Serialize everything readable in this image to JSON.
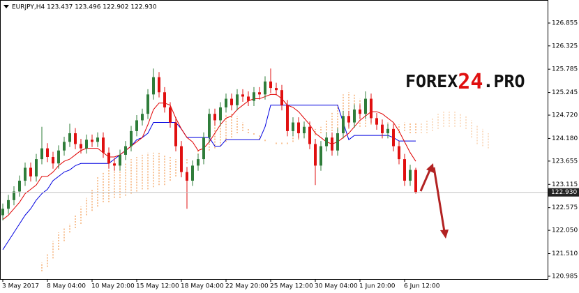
{
  "header": "EURJPY,H4  123.437 123.496 122.902 122.930",
  "logo": {
    "part1": "FOREX",
    "part2": "24",
    "part3": ".PRO"
  },
  "chart_data": {
    "type": "candlestick",
    "categories": [
      "3 May 2017",
      null,
      null,
      null,
      null,
      null,
      null,
      null,
      "8 May 04:00",
      null,
      null,
      null,
      null,
      null,
      null,
      null,
      "10 May 20:00",
      null,
      null,
      null,
      null,
      null,
      null,
      null,
      "15 May 12:00",
      null,
      null,
      null,
      null,
      null,
      null,
      null,
      "18 May 04:00",
      null,
      null,
      null,
      null,
      null,
      null,
      null,
      "22 May 20:00",
      null,
      null,
      null,
      null,
      null,
      null,
      null,
      "25 May 12:00",
      null,
      null,
      null,
      null,
      null,
      null,
      null,
      "30 May 04:00",
      null,
      null,
      null,
      null,
      null,
      null,
      null,
      "1 Jun 20:00",
      null,
      null,
      null,
      null,
      null,
      null,
      null,
      "6 Jun 12:00",
      null,
      null,
      null,
      null,
      null,
      null,
      null,
      null,
      null,
      null,
      null,
      null,
      null,
      null,
      null
    ],
    "open": [
      122.4,
      122.55,
      122.75,
      122.95,
      123.2,
      123.5,
      123.3,
      123.7,
      123.95,
      123.75,
      123.6,
      123.9,
      124.1,
      124.3,
      124.05,
      123.95,
      124.15,
      124.1,
      124.2,
      123.85,
      123.6,
      123.55,
      123.8,
      124.0,
      124.35,
      124.6,
      124.75,
      125.2,
      125.6,
      125.25,
      124.9,
      124.55,
      124.0,
      123.4,
      123.2,
      123.55,
      123.7,
      124.2,
      124.75,
      124.6,
      124.9,
      125.1,
      124.95,
      125.2,
      125.15,
      125.05,
      125.25,
      125.2,
      125.5,
      125.35,
      125.3,
      124.95,
      124.35,
      124.55,
      124.3,
      124.45,
      124.05,
      123.55,
      124.0,
      124.2,
      123.9,
      124.3,
      124.7,
      124.55,
      124.85,
      124.75,
      125.1,
      124.65,
      124.5,
      124.3,
      124.4,
      124.0,
      123.7,
      123.2,
      123.45,
      null,
      null,
      null,
      null,
      null,
      null,
      null,
      null,
      null,
      null,
      null,
      null,
      null
    ],
    "high": [
      122.67,
      122.87,
      123.07,
      123.32,
      123.62,
      123.62,
      123.82,
      124.45,
      124.07,
      123.87,
      124.02,
      124.22,
      124.52,
      124.42,
      124.17,
      124.27,
      124.27,
      124.32,
      124.32,
      123.97,
      123.72,
      123.92,
      124.12,
      124.47,
      124.72,
      124.87,
      125.32,
      125.8,
      125.72,
      125.37,
      125.02,
      124.67,
      124.12,
      123.52,
      123.67,
      123.82,
      124.32,
      124.87,
      124.87,
      125.02,
      125.22,
      125.22,
      125.32,
      125.32,
      125.27,
      125.37,
      125.37,
      125.62,
      125.8,
      125.47,
      125.42,
      125.07,
      124.67,
      124.67,
      124.57,
      124.57,
      124.17,
      124.12,
      124.32,
      124.32,
      124.42,
      124.82,
      124.82,
      124.97,
      124.97,
      125.27,
      125.22,
      124.77,
      124.62,
      124.52,
      124.52,
      124.12,
      123.82,
      123.57,
      123.5,
      null,
      null,
      null,
      null,
      null,
      null,
      null,
      null,
      null,
      null,
      null,
      null,
      null
    ],
    "low": [
      122.28,
      122.43,
      122.63,
      122.83,
      123.08,
      123.18,
      123.18,
      123.58,
      123.63,
      123.48,
      123.48,
      123.78,
      123.98,
      123.93,
      123.83,
      123.83,
      123.98,
      123.98,
      123.73,
      123.48,
      123.43,
      123.43,
      123.68,
      123.88,
      124.23,
      124.48,
      124.63,
      125.08,
      125.13,
      124.78,
      124.43,
      123.88,
      123.28,
      122.55,
      123.08,
      123.43,
      123.58,
      124.08,
      124.48,
      124.48,
      124.78,
      124.83,
      124.83,
      125.03,
      124.93,
      124.93,
      125.08,
      125.08,
      125.23,
      125.18,
      124.83,
      124.23,
      124.23,
      124.18,
      124.18,
      123.93,
      123.1,
      123.43,
      123.88,
      123.78,
      123.78,
      124.18,
      124.43,
      124.43,
      124.63,
      124.63,
      124.53,
      124.38,
      124.18,
      124.18,
      123.88,
      123.58,
      123.08,
      123.08,
      122.9,
      null,
      null,
      null,
      null,
      null,
      null,
      null,
      null,
      null,
      null,
      null,
      null,
      null
    ],
    "close": [
      122.55,
      122.75,
      122.95,
      123.2,
      123.5,
      123.3,
      123.7,
      123.95,
      123.75,
      123.6,
      123.9,
      124.1,
      124.3,
      124.05,
      123.95,
      124.15,
      124.1,
      124.2,
      123.85,
      123.6,
      123.55,
      123.8,
      124.0,
      124.35,
      124.6,
      124.75,
      125.2,
      125.6,
      125.25,
      124.9,
      124.55,
      124.0,
      123.4,
      123.2,
      123.55,
      123.7,
      124.2,
      124.75,
      124.6,
      124.9,
      125.1,
      124.95,
      125.2,
      125.15,
      125.05,
      125.25,
      125.2,
      125.5,
      125.35,
      125.3,
      124.95,
      124.35,
      124.55,
      124.3,
      124.45,
      124.05,
      123.55,
      124.0,
      124.2,
      123.9,
      124.3,
      124.7,
      124.55,
      124.85,
      124.75,
      125.1,
      124.65,
      124.5,
      124.3,
      124.4,
      124.0,
      123.7,
      123.2,
      123.45,
      122.93,
      null,
      null,
      null,
      null,
      null,
      null,
      null,
      null,
      null,
      null,
      null,
      null,
      null
    ],
    "up_color": "#2f7d3a",
    "down_color": "#e01010",
    "tenkan": {
      "color": "#e00000",
      "values": [
        122.3,
        122.4,
        122.55,
        122.7,
        122.9,
        123.0,
        123.1,
        123.3,
        123.3,
        123.4,
        123.55,
        123.65,
        123.7,
        123.8,
        123.9,
        123.95,
        123.95,
        123.95,
        123.85,
        123.75,
        123.75,
        123.8,
        123.9,
        124.0,
        124.1,
        124.2,
        124.5,
        124.85,
        125.0,
        125.0,
        124.95,
        124.65,
        124.4,
        124.2,
        124.1,
        123.9,
        123.95,
        124.1,
        124.3,
        124.5,
        124.65,
        124.7,
        124.85,
        124.95,
        125.05,
        125.1,
        125.1,
        125.15,
        125.2,
        125.2,
        125.1,
        124.95,
        124.9,
        124.8,
        124.65,
        124.5,
        124.3,
        124.2,
        124.1,
        124.05,
        124.1,
        124.2,
        124.3,
        124.45,
        124.6,
        124.7,
        124.8,
        124.8,
        124.75,
        124.65,
        124.55,
        124.35,
        124.1,
        123.85,
        123.65,
        null,
        null,
        null,
        null,
        null,
        null,
        null,
        null,
        null,
        null,
        null,
        null,
        null
      ]
    },
    "kijun": {
      "color": "#0000e0",
      "values": [
        121.6,
        121.8,
        122.0,
        122.2,
        122.4,
        122.55,
        122.75,
        122.9,
        123.0,
        123.2,
        123.3,
        123.4,
        123.45,
        123.55,
        123.6,
        123.6,
        123.6,
        123.6,
        123.6,
        123.6,
        123.7,
        123.8,
        123.9,
        124.0,
        124.15,
        124.2,
        124.3,
        124.55,
        124.55,
        124.55,
        124.55,
        124.55,
        124.4,
        124.2,
        124.2,
        124.2,
        124.2,
        124.2,
        124.0,
        124.0,
        124.15,
        124.15,
        124.15,
        124.15,
        124.15,
        124.15,
        124.15,
        124.45,
        124.95,
        124.95,
        124.95,
        124.95,
        124.95,
        124.95,
        124.95,
        124.95,
        124.95,
        124.95,
        124.95,
        124.95,
        124.95,
        124.55,
        124.15,
        124.25,
        124.25,
        124.25,
        124.25,
        124.25,
        124.25,
        124.25,
        124.2,
        124.12,
        124.12,
        124.12,
        124.12,
        null,
        null,
        null,
        null,
        null,
        null,
        null,
        null,
        null,
        null,
        null,
        null,
        null
      ]
    },
    "cloud": {
      "color": "#f29a50",
      "span_a": [
        null,
        null,
        null,
        null,
        null,
        null,
        null,
        121.1,
        121.2,
        121.4,
        121.6,
        121.8,
        122.0,
        122.1,
        122.2,
        122.4,
        122.5,
        122.6,
        122.7,
        122.7,
        122.8,
        122.8,
        122.85,
        122.9,
        122.95,
        123.0,
        123.0,
        123.05,
        123.1,
        123.1,
        123.2,
        123.3,
        123.45,
        123.6,
        123.75,
        123.8,
        123.85,
        123.9,
        123.95,
        124.0,
        124.1,
        124.2,
        124.3,
        124.35,
        124.3,
        124.3,
        124.25,
        124.15,
        124.1,
        124.05,
        124.05,
        124.05,
        124.1,
        124.15,
        124.2,
        124.25,
        124.25,
        124.3,
        124.3,
        124.35,
        124.35,
        124.4,
        124.4,
        124.45,
        124.45,
        124.45,
        124.5,
        124.5,
        124.45,
        124.4,
        124.35,
        124.3,
        124.35,
        124.3,
        124.3,
        124.3,
        124.3,
        124.35,
        124.4,
        124.45,
        124.45,
        124.45,
        124.45,
        124.4,
        124.2,
        124.05,
        124.0,
        123.95
      ],
      "span_b": [
        null,
        null,
        null,
        null,
        null,
        null,
        null,
        121.3,
        121.5,
        121.8,
        122.0,
        122.1,
        122.2,
        122.4,
        122.6,
        122.8,
        123.0,
        123.3,
        123.4,
        123.45,
        123.5,
        123.55,
        123.6,
        123.7,
        123.75,
        123.8,
        123.85,
        123.85,
        123.85,
        123.8,
        123.75,
        123.7,
        123.65,
        123.7,
        123.75,
        123.9,
        124.1,
        124.3,
        124.55,
        124.7,
        124.75,
        124.75,
        124.7,
        124.55,
        124.4,
        124.25,
        124.15,
        124.1,
        124.1,
        124.1,
        124.1,
        124.1,
        124.3,
        124.4,
        124.5,
        124.45,
        124.4,
        124.45,
        124.6,
        124.8,
        125.0,
        125.2,
        125.25,
        125.2,
        125.1,
        124.95,
        124.8,
        124.7,
        124.6,
        124.55,
        124.5,
        124.5,
        124.55,
        124.55,
        124.55,
        124.55,
        124.6,
        124.65,
        124.75,
        124.8,
        124.8,
        124.8,
        124.75,
        124.7,
        124.6,
        124.5,
        124.4,
        124.3
      ]
    },
    "ylim": [
      120.92,
      127.389
    ],
    "yticks": [
      120.985,
      {
        "value": 121.51,
        "label": "121.510"
      },
      {
        "value": 122.05,
        "label": "122.050"
      },
      122.575,
      123.115,
      123.655,
      {
        "value": 124.18,
        "label": "124.180"
      },
      {
        "value": 124.72,
        "label": "124.720"
      },
      125.245,
      125.785,
      126.325,
      126.855
    ],
    "last_price": {
      "value": 122.93,
      "label": "122.930"
    }
  }
}
